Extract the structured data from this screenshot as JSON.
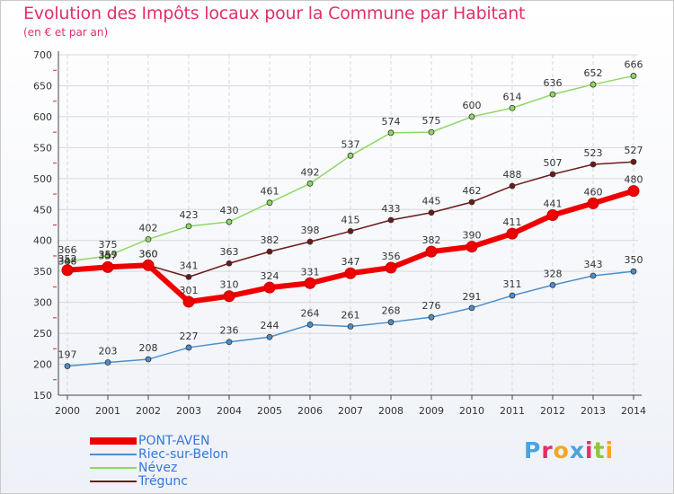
{
  "title": "Evolution des Impôts locaux pour la Commune par Habitant",
  "subtitle": "(en € et par an)",
  "logo": {
    "text": "Proxiti",
    "colors": [
      "#4aa3df",
      "#e0306a",
      "#f5a623",
      "#4aa3df",
      "#e0306a",
      "#8cc63f",
      "#f5a623"
    ]
  },
  "chart_data": {
    "type": "line",
    "x": [
      "2000",
      "2001",
      "2002",
      "2003",
      "2004",
      "2005",
      "2006",
      "2007",
      "2008",
      "2009",
      "2010",
      "2011",
      "2012",
      "2013",
      "2014"
    ],
    "ylim": [
      150,
      700
    ],
    "yticks": [
      150,
      200,
      250,
      300,
      350,
      400,
      450,
      500,
      550,
      600,
      650,
      700
    ],
    "grid": true,
    "legend_position": "bottom-left",
    "series": [
      {
        "name": "PONT-AVEN",
        "color": "#ee0000",
        "values": [
          352,
          357,
          360,
          301,
          310,
          324,
          331,
          347,
          356,
          382,
          390,
          411,
          441,
          460,
          480
        ]
      },
      {
        "name": "Riec-sur-Belon",
        "color": "#4b8fcc",
        "values": [
          197,
          203,
          208,
          227,
          236,
          244,
          264,
          261,
          268,
          276,
          291,
          311,
          328,
          343,
          350
        ]
      },
      {
        "name": "Névez",
        "color": "#8fd866",
        "values": [
          366,
          375,
          402,
          423,
          430,
          461,
          492,
          537,
          574,
          575,
          600,
          614,
          636,
          652,
          666
        ]
      },
      {
        "name": "Trégunc",
        "color": "#6b1a1a",
        "values": [
          348,
          359,
          360,
          341,
          363,
          382,
          398,
          415,
          433,
          445,
          462,
          488,
          507,
          523,
          527
        ]
      }
    ]
  }
}
